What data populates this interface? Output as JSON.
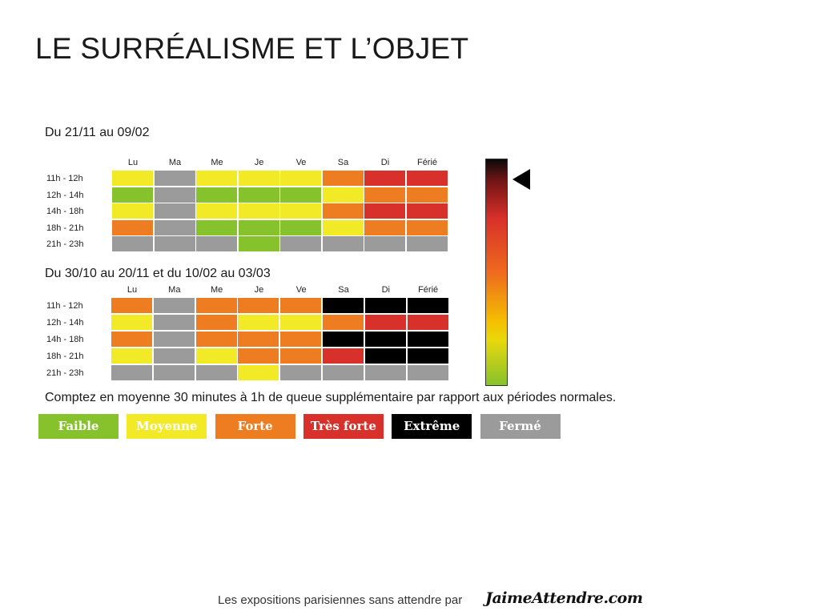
{
  "title": "LE SURRÉALISME ET L’OBJET",
  "note": "Comptez en moyenne 30 minutes à 1h de queue supplémentaire par rapport aux périodes normales.",
  "footer": {
    "text": "Les expositions parisiennes sans attendre par",
    "brand": "JaimeAttendre.com"
  },
  "colors": {
    "faible": "#86c22c",
    "moyenne": "#f2e927",
    "forte": "#ee7d22",
    "tres_forte": "#d8302a",
    "extreme": "#000000",
    "ferme": "#9b9b9b"
  },
  "legend": [
    {
      "key": "faible",
      "label": "Faible"
    },
    {
      "key": "moyenne",
      "label": "Moyenne"
    },
    {
      "key": "forte",
      "label": "Forte"
    },
    {
      "key": "tres_forte",
      "label": "Très forte"
    },
    {
      "key": "extreme",
      "label": "Extrême"
    },
    {
      "key": "ferme",
      "label": "Fermé"
    }
  ],
  "gauge": {
    "pointer_level_from_top": 0.09
  },
  "chart_data": [
    {
      "type": "heatmap",
      "period": "Du 21/11 au 09/02",
      "columns": [
        "Lu",
        "Ma",
        "Me",
        "Je",
        "Ve",
        "Sa",
        "Di",
        "Férié"
      ],
      "rows": [
        "11h - 12h",
        "12h - 14h",
        "14h - 18h",
        "18h - 21h",
        "21h - 23h"
      ],
      "values": [
        [
          "moyenne",
          "ferme",
          "moyenne",
          "moyenne",
          "moyenne",
          "forte",
          "tres_forte",
          "tres_forte"
        ],
        [
          "faible",
          "ferme",
          "faible",
          "faible",
          "faible",
          "moyenne",
          "forte",
          "forte"
        ],
        [
          "moyenne",
          "ferme",
          "moyenne",
          "moyenne",
          "moyenne",
          "forte",
          "tres_forte",
          "tres_forte"
        ],
        [
          "forte",
          "ferme",
          "faible",
          "faible",
          "faible",
          "moyenne",
          "forte",
          "forte"
        ],
        [
          "ferme",
          "ferme",
          "ferme",
          "faible",
          "ferme",
          "ferme",
          "ferme",
          "ferme"
        ]
      ]
    },
    {
      "type": "heatmap",
      "period": "Du 30/10 au 20/11 et du 10/02 au 03/03",
      "columns": [
        "Lu",
        "Ma",
        "Me",
        "Je",
        "Ve",
        "Sa",
        "Di",
        "Férié"
      ],
      "rows": [
        "11h - 12h",
        "12h - 14h",
        "14h - 18h",
        "18h - 21h",
        "21h - 23h"
      ],
      "values": [
        [
          "forte",
          "ferme",
          "forte",
          "forte",
          "forte",
          "extreme",
          "extreme",
          "extreme"
        ],
        [
          "moyenne",
          "ferme",
          "forte",
          "moyenne",
          "moyenne",
          "forte",
          "tres_forte",
          "tres_forte"
        ],
        [
          "forte",
          "ferme",
          "forte",
          "forte",
          "forte",
          "extreme",
          "extreme",
          "extreme"
        ],
        [
          "moyenne",
          "ferme",
          "moyenne",
          "forte",
          "forte",
          "tres_forte",
          "extreme",
          "extreme"
        ],
        [
          "ferme",
          "ferme",
          "ferme",
          "moyenne",
          "ferme",
          "ferme",
          "ferme",
          "ferme"
        ]
      ]
    }
  ]
}
